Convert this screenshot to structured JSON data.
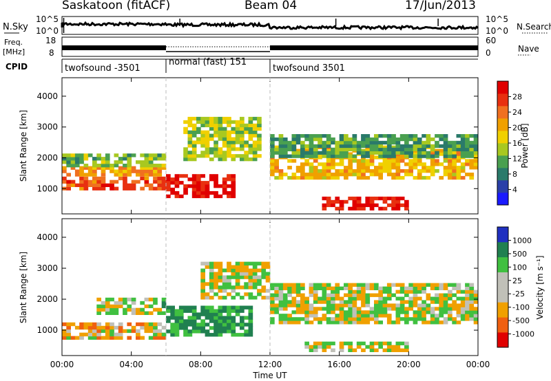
{
  "header": {
    "station": "Saskatoon (fitACF)",
    "beam": "Beam 04",
    "date": "17/Jun/2013"
  },
  "summary": {
    "nsky_label": "N.Sky",
    "nsearch_label": "N.Search",
    "freq_label_1": "Freq.",
    "freq_label_2": "[MHz]",
    "nave_label": "Nave",
    "cpid_label": "CPID",
    "left_ticks": {
      "nsky_top": "10^5",
      "nsky_bottom": "10^0",
      "freq_top": "18",
      "freq_bottom": "8"
    },
    "right_ticks": {
      "nsearch_top": "10^5",
      "nsearch_bottom": "10^0",
      "nave_top": "60",
      "nave_bottom": "0"
    },
    "cpid_segments": [
      {
        "label": "twofsound -3501",
        "start_hour": 0,
        "end_hour": 6
      },
      {
        "label": "normal (fast) 151",
        "start_hour": 6,
        "end_hour": 12
      },
      {
        "label": "twofsound 3501",
        "start_hour": 12,
        "end_hour": 24
      }
    ]
  },
  "axes": {
    "ylabel": "Slant Range [km]",
    "yticks": [
      "1000",
      "2000",
      "3000",
      "4000"
    ],
    "xticks": [
      "00:00",
      "04:00",
      "08:00",
      "12:00",
      "16:00",
      "20:00",
      "00:00"
    ],
    "xlabel": "Time UT"
  },
  "power_scale": {
    "label": "Power [dB]",
    "ticks": [
      "4",
      "8",
      "12",
      "16",
      "20",
      "24",
      "28"
    ],
    "colors": [
      "#1a1aff",
      "#2a3fa8",
      "#2a7a6a",
      "#4aa050",
      "#a8c820",
      "#f0d000",
      "#f0a000",
      "#f07020",
      "#e83010",
      "#e00000"
    ]
  },
  "velocity_scale": {
    "label": "Velocity [m s⁻¹]",
    "ticks": [
      "1000",
      "500",
      "100",
      "25",
      "-25",
      "-100",
      "-500",
      "-1000"
    ],
    "colors": [
      "#2030c0",
      "#208050",
      "#40c040",
      "#c0c0b8",
      "#c0c0b8",
      "#f0a000",
      "#f06010",
      "#e00000"
    ]
  },
  "chart_data": [
    {
      "type": "heatmap",
      "title": "Power",
      "xlabel": "Time UT",
      "ylabel": "Slant Range [km]",
      "xlim": [
        0,
        24
      ],
      "ylim": [
        180,
        4600
      ],
      "colorbar_label": "Power [dB]",
      "clim": [
        0,
        30
      ],
      "regions": [
        {
          "t": [
            0,
            6
          ],
          "r": [
            950,
            1350
          ],
          "value": 24
        },
        {
          "t": [
            0,
            6
          ],
          "r": [
            1400,
            1700
          ],
          "value": 20
        },
        {
          "t": [
            0,
            6
          ],
          "r": [
            1700,
            2100
          ],
          "value": 12
        },
        {
          "t": [
            6,
            10
          ],
          "r": [
            700,
            1400
          ],
          "value": 28
        },
        {
          "t": [
            7,
            11.5
          ],
          "r": [
            1900,
            3300
          ],
          "value": 14
        },
        {
          "t": [
            12,
            24
          ],
          "r": [
            1300,
            2400
          ],
          "value": 18
        },
        {
          "t": [
            12,
            24
          ],
          "r": [
            2000,
            2700
          ],
          "value": 10
        },
        {
          "t": [
            15,
            20
          ],
          "r": [
            300,
            700
          ],
          "value": 28
        }
      ]
    },
    {
      "type": "heatmap",
      "title": "Velocity",
      "xlabel": "Time UT",
      "ylabel": "Slant Range [km]",
      "xlim": [
        0,
        24
      ],
      "ylim": [
        180,
        4600
      ],
      "colorbar_label": "Velocity [m s⁻¹]",
      "clim": [
        -1000,
        1000
      ],
      "regions": [
        {
          "t": [
            0,
            6
          ],
          "r": [
            700,
            1200
          ],
          "value": -150
        },
        {
          "t": [
            2,
            6
          ],
          "r": [
            1500,
            2000
          ],
          "value": 60
        },
        {
          "t": [
            6,
            11
          ],
          "r": [
            800,
            1700
          ],
          "value": 300
        },
        {
          "t": [
            8,
            12
          ],
          "r": [
            2000,
            3200
          ],
          "value": 0
        },
        {
          "t": [
            12,
            24
          ],
          "r": [
            1200,
            2500
          ],
          "value": 0
        },
        {
          "t": [
            14,
            20
          ],
          "r": [
            300,
            600
          ],
          "value": 0
        }
      ]
    }
  ]
}
